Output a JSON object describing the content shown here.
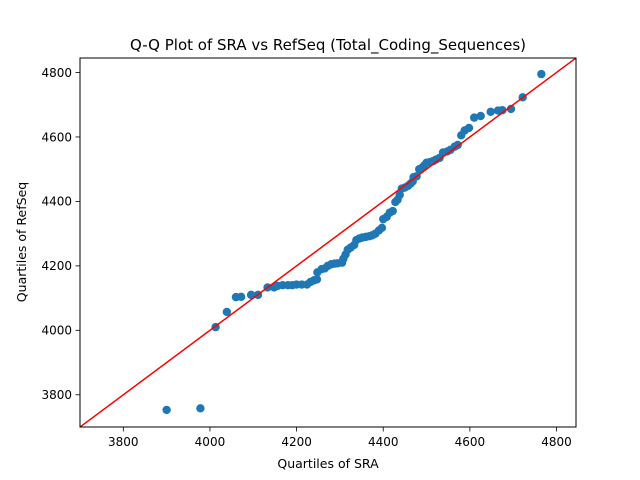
{
  "chart_data": {
    "type": "scatter",
    "title": "Q-Q Plot of SRA vs RefSeq (Total_Coding_Sequences)",
    "xlabel": "Quartiles of SRA",
    "ylabel": "Quartiles of RefSeq",
    "xlim": [
      3700,
      4845
    ],
    "ylim": [
      3700,
      4845
    ],
    "xticks": [
      3800,
      4000,
      4200,
      4400,
      4600,
      4800
    ],
    "yticks": [
      3800,
      4000,
      4200,
      4400,
      4600,
      4800
    ],
    "grid": false,
    "reference_line": {
      "slope": 1,
      "intercept": 0,
      "color": "#ff0000"
    },
    "marker_color": "#1f77b4",
    "series": [
      {
        "points": [
          [
            3900,
            3753
          ],
          [
            3978,
            3758
          ],
          [
            4013,
            4010
          ],
          [
            4039,
            4057
          ],
          [
            4060,
            4103
          ],
          [
            4072,
            4104
          ],
          [
            4095,
            4110
          ],
          [
            4111,
            4110
          ],
          [
            4133,
            4133
          ],
          [
            4148,
            4133
          ],
          [
            4156,
            4138
          ],
          [
            4168,
            4140
          ],
          [
            4180,
            4140
          ],
          [
            4190,
            4140
          ],
          [
            4200,
            4142
          ],
          [
            4212,
            4142
          ],
          [
            4224,
            4142
          ],
          [
            4232,
            4150
          ],
          [
            4240,
            4155
          ],
          [
            4247,
            4158
          ],
          [
            4248,
            4180
          ],
          [
            4258,
            4190
          ],
          [
            4265,
            4192
          ],
          [
            4272,
            4200
          ],
          [
            4280,
            4205
          ],
          [
            4288,
            4207
          ],
          [
            4295,
            4208
          ],
          [
            4305,
            4210
          ],
          [
            4308,
            4222
          ],
          [
            4313,
            4235
          ],
          [
            4318,
            4250
          ],
          [
            4325,
            4257
          ],
          [
            4333,
            4265
          ],
          [
            4338,
            4280
          ],
          [
            4345,
            4285
          ],
          [
            4352,
            4288
          ],
          [
            4360,
            4290
          ],
          [
            4368,
            4292
          ],
          [
            4375,
            4295
          ],
          [
            4382,
            4300
          ],
          [
            4390,
            4310
          ],
          [
            4397,
            4318
          ],
          [
            4400,
            4345
          ],
          [
            4408,
            4352
          ],
          [
            4415,
            4365
          ],
          [
            4422,
            4370
          ],
          [
            4428,
            4398
          ],
          [
            4433,
            4405
          ],
          [
            4438,
            4420
          ],
          [
            4443,
            4440
          ],
          [
            4450,
            4443
          ],
          [
            4457,
            4448
          ],
          [
            4463,
            4455
          ],
          [
            4468,
            4462
          ],
          [
            4470,
            4475
          ],
          [
            4477,
            4478
          ],
          [
            4483,
            4500
          ],
          [
            4490,
            4505
          ],
          [
            4495,
            4512
          ],
          [
            4500,
            4520
          ],
          [
            4508,
            4522
          ],
          [
            4515,
            4525
          ],
          [
            4522,
            4530
          ],
          [
            4530,
            4535
          ],
          [
            4538,
            4552
          ],
          [
            4548,
            4555
          ],
          [
            4555,
            4560
          ],
          [
            4565,
            4570
          ],
          [
            4572,
            4575
          ],
          [
            4580,
            4605
          ],
          [
            4588,
            4620
          ],
          [
            4598,
            4628
          ],
          [
            4610,
            4660
          ],
          [
            4625,
            4665
          ],
          [
            4648,
            4678
          ],
          [
            4665,
            4682
          ],
          [
            4675,
            4683
          ],
          [
            4695,
            4687
          ],
          [
            4722,
            4723
          ],
          [
            4765,
            4795
          ]
        ]
      }
    ]
  }
}
